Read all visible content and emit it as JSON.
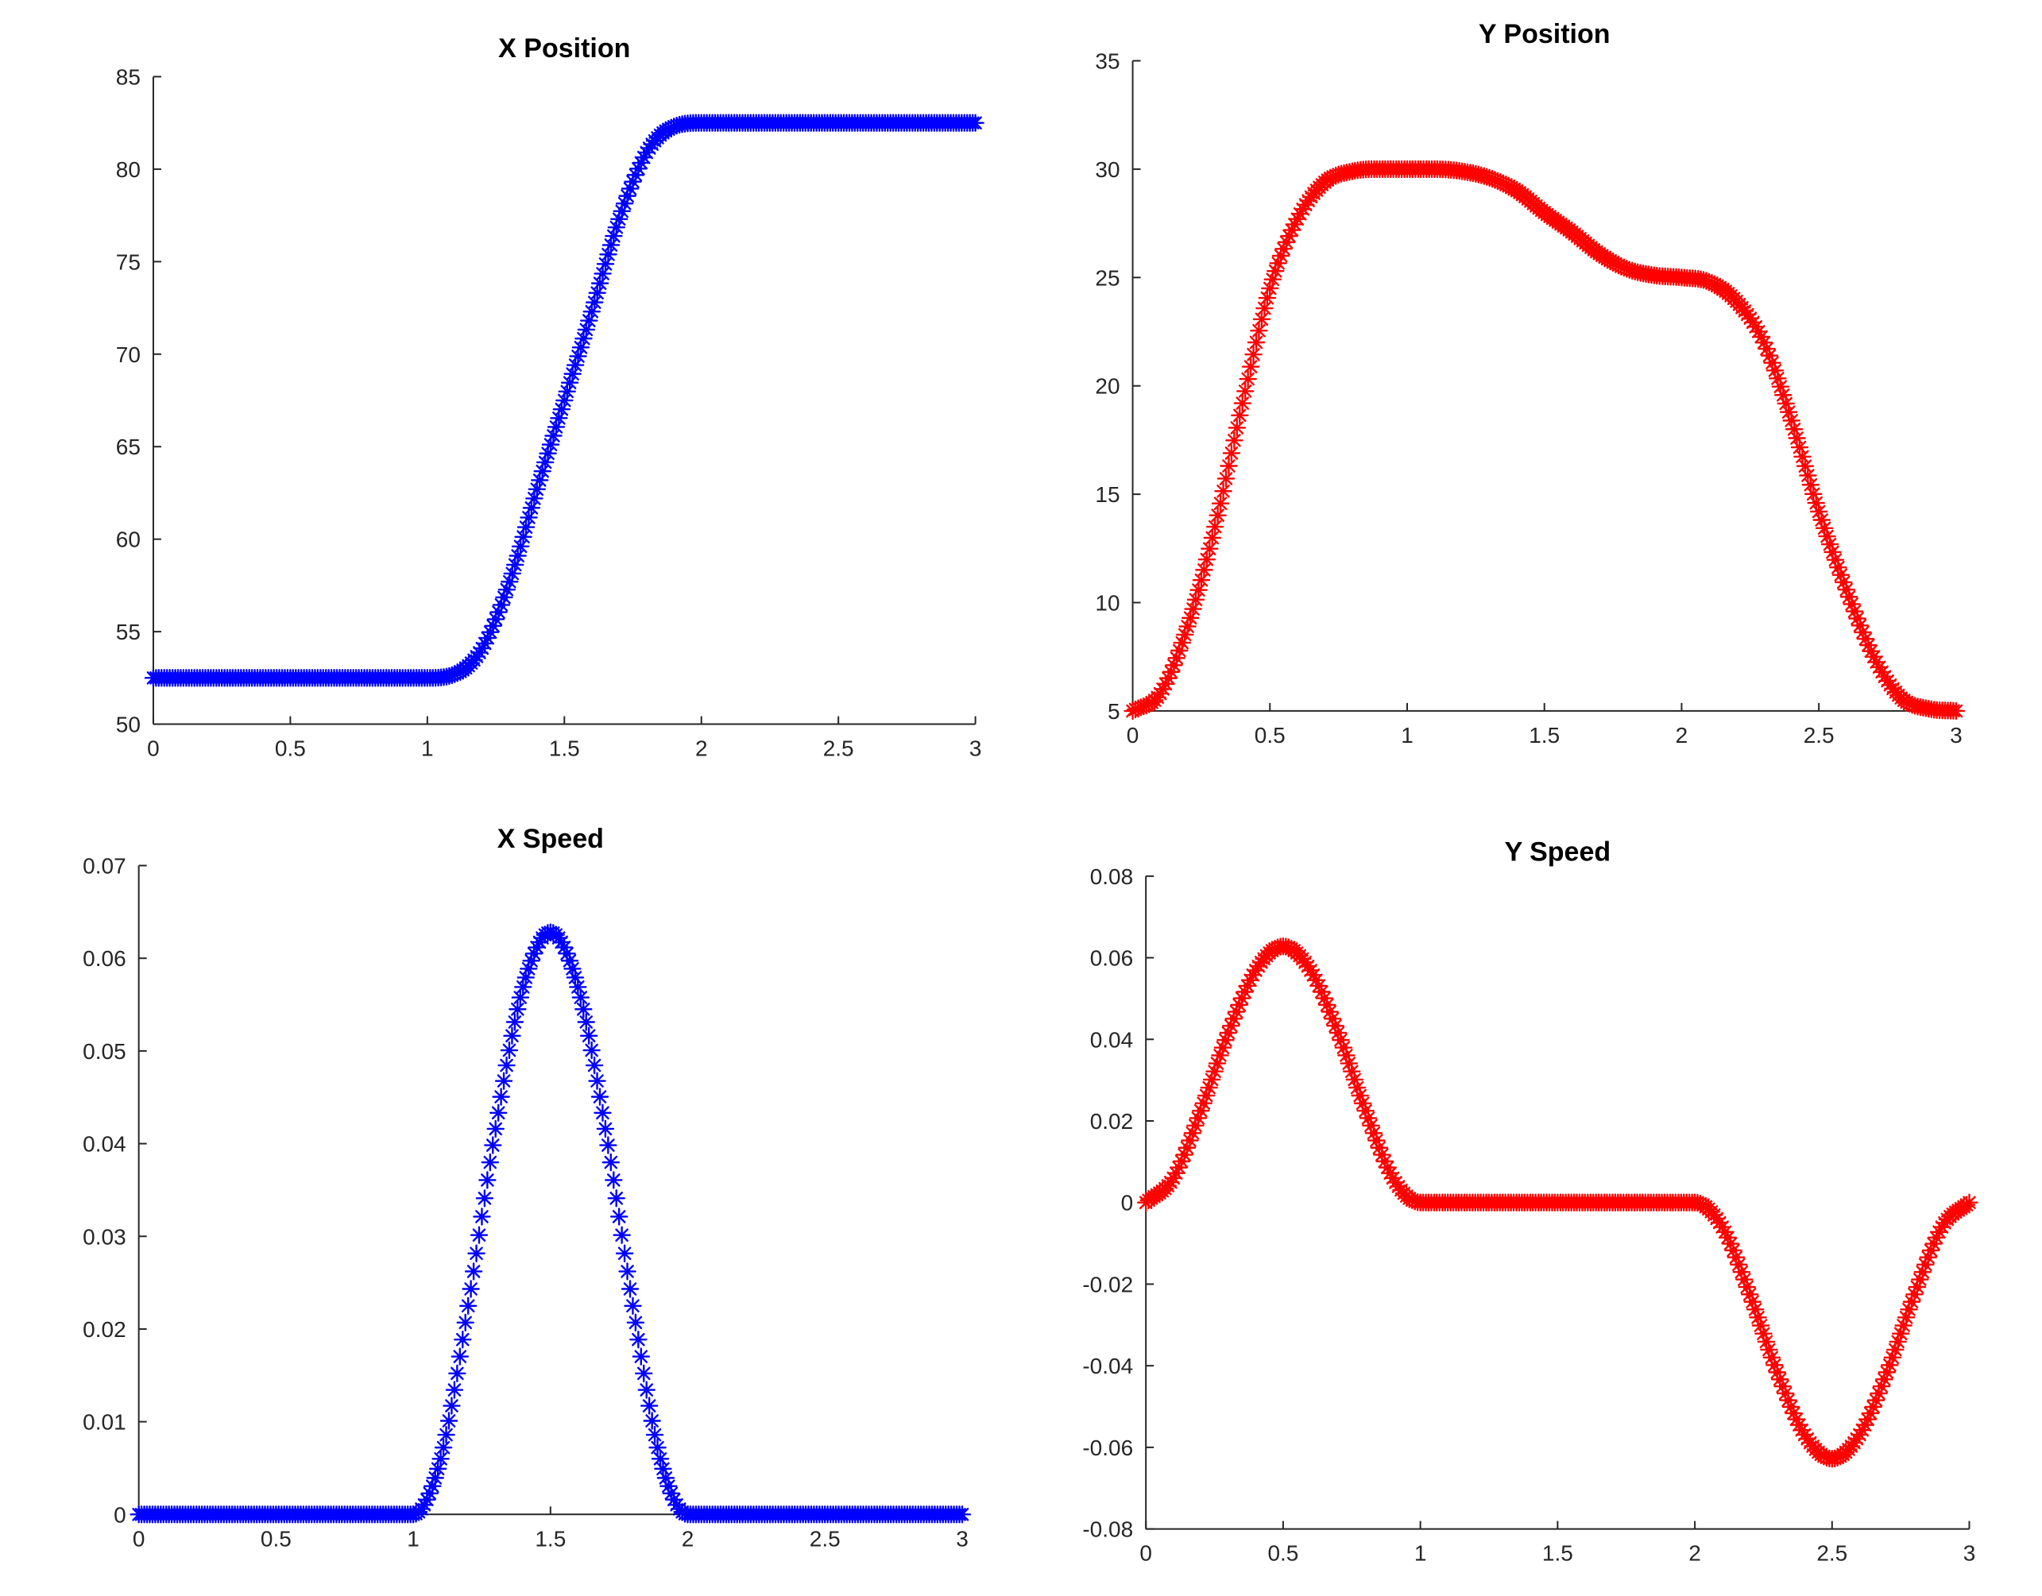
{
  "chart_data": [
    {
      "type": "scatter",
      "title": "X Position",
      "xlabel": "",
      "ylabel": "",
      "xlim": [
        0,
        3
      ],
      "ylim": [
        50,
        85
      ],
      "xticks": [
        "0",
        "0.5",
        "1",
        "1.5",
        "2",
        "2.5",
        "3"
      ],
      "yticks": [
        "50",
        "55",
        "60",
        "65",
        "70",
        "75",
        "80",
        "85"
      ],
      "grid": false,
      "marker": "*",
      "color": "#0000ff",
      "series": [
        {
          "x": [
            0,
            0.1,
            0.2,
            0.3,
            0.4,
            0.5,
            0.6,
            0.7,
            0.8,
            0.9,
            1,
            1.1,
            1.2,
            1.3,
            1.4,
            1.5,
            1.6,
            1.7,
            1.8,
            1.9,
            2,
            2.2,
            2.4,
            2.6,
            2.8,
            3
          ],
          "y": [
            52.5,
            52.5,
            52.5,
            52.5,
            52.5,
            52.5,
            52.5,
            52.5,
            52.5,
            52.5,
            52.5,
            52.7,
            54.1,
            57.7,
            62.7,
            67.5,
            72.3,
            77.3,
            80.9,
            82.3,
            82.5,
            82.5,
            82.5,
            82.5,
            82.5,
            82.5
          ]
        }
      ]
    },
    {
      "type": "scatter",
      "title": "Y Position",
      "xlabel": "",
      "ylabel": "",
      "xlim": [
        0,
        3
      ],
      "ylim": [
        5,
        35
      ],
      "xticks": [
        "0",
        "0.5",
        "1",
        "1.5",
        "2",
        "2.5",
        "3"
      ],
      "yticks": [
        "5",
        "10",
        "15",
        "20",
        "25",
        "30",
        "35"
      ],
      "grid": false,
      "marker": "*",
      "color": "#ff0000",
      "series": [
        {
          "x": [
            0,
            0.1,
            0.2,
            0.3,
            0.4,
            0.5,
            0.6,
            0.7,
            0.8,
            0.9,
            1,
            1.1,
            1.2,
            1.3,
            1.4,
            1.5,
            1.6,
            1.7,
            1.8,
            1.9,
            2,
            2.1,
            2.2,
            2.3,
            2.4,
            2.5,
            2.6,
            2.7,
            2.8,
            2.9,
            3
          ],
          "y": [
            5,
            5.8,
            8.9,
            13.5,
            19.2,
            24.5,
            27.7,
            29.4,
            29.9,
            30,
            30,
            30,
            29.9,
            29.6,
            29,
            28,
            27.1,
            26.1,
            25.4,
            25.1,
            25,
            24.8,
            23.9,
            22,
            18.4,
            14.2,
            10.6,
            7.5,
            5.6,
            5.1,
            5
          ]
        }
      ]
    },
    {
      "type": "scatter",
      "title": "X Speed",
      "xlabel": "",
      "ylabel": "",
      "xlim": [
        0,
        3
      ],
      "ylim": [
        0,
        0.07
      ],
      "xticks": [
        "0",
        "0.5",
        "1",
        "1.5",
        "2",
        "2.5",
        "3"
      ],
      "yticks": [
        "0",
        "0.01",
        "0.02",
        "0.03",
        "0.04",
        "0.05",
        "0.06",
        "0.07"
      ],
      "grid": false,
      "marker": "*",
      "color": "#0000ff",
      "series": [
        {
          "x": [
            0,
            0.1,
            0.2,
            0.3,
            0.4,
            0.5,
            0.6,
            0.7,
            0.8,
            0.9,
            1,
            1.1,
            1.2,
            1.3,
            1.4,
            1.5,
            1.6,
            1.7,
            1.8,
            1.9,
            2,
            2.1,
            2.2,
            2.3,
            2.4,
            2.5,
            2.6,
            2.7,
            2.8,
            2.9,
            3
          ],
          "y": [
            0,
            0,
            0,
            0,
            0,
            0,
            0,
            0,
            0,
            0,
            0,
            0.006,
            0.0225,
            0.0416,
            0.0569,
            0.0628,
            0.0569,
            0.0416,
            0.0225,
            0.006,
            0,
            0,
            0,
            0,
            0,
            0,
            0,
            0,
            0,
            0,
            0
          ]
        }
      ]
    },
    {
      "type": "scatter",
      "title": "Y Speed",
      "xlabel": "",
      "ylabel": "",
      "xlim": [
        0,
        3
      ],
      "ylim": [
        -0.08,
        0.08
      ],
      "xticks": [
        "0",
        "0.5",
        "1",
        "1.5",
        "2",
        "2.5",
        "3"
      ],
      "yticks": [
        "-0.08",
        "-0.06",
        "-0.04",
        "-0.02",
        "0",
        "0.02",
        "0.04",
        "0.06",
        "0.08"
      ],
      "grid": false,
      "marker": "*",
      "color": "#ff0000",
      "series": [
        {
          "x": [
            0,
            0.1,
            0.2,
            0.3,
            0.4,
            0.5,
            0.6,
            0.7,
            0.8,
            0.9,
            1,
            1.1,
            1.2,
            1.3,
            1.4,
            1.5,
            1.6,
            1.7,
            1.8,
            1.9,
            2,
            2.1,
            2.2,
            2.3,
            2.4,
            2.5,
            2.6,
            2.7,
            2.8,
            2.9,
            3
          ],
          "y": [
            0,
            0.006,
            0.0225,
            0.0416,
            0.0569,
            0.0628,
            0.0569,
            0.0416,
            0.0225,
            0.006,
            0,
            0,
            0,
            0,
            0,
            0,
            0,
            0,
            0,
            0,
            0,
            -0.006,
            -0.0225,
            -0.0416,
            -0.0569,
            -0.0628,
            -0.0569,
            -0.0416,
            -0.0225,
            -0.006,
            0
          ]
        }
      ]
    }
  ]
}
